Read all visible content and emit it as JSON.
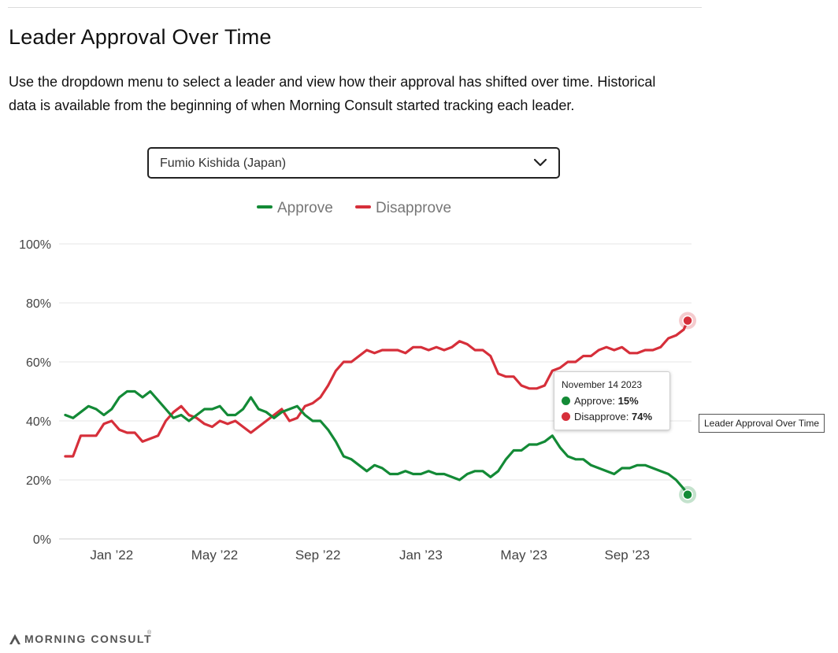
{
  "header": {
    "title": "Leader Approval Over Time",
    "description": "Use the dropdown menu to select a leader and view how their approval has shifted over time. Historical data is available from the beginning of when Morning Consult started tracking each leader."
  },
  "leader_select": {
    "value": "Fumio Kishida (Japan)",
    "icon": "chevron-down-icon"
  },
  "tooltip": {
    "date": "November 14 2023",
    "approve_label": "Approve:",
    "approve_value": "15%",
    "disapprove_label": "Disapprove:",
    "disapprove_value": "74%"
  },
  "side_label": "Leader Approval Over Time",
  "brand": {
    "name": "MORNING CONSULT",
    "tm": "®"
  },
  "colors": {
    "approve": "#138a36",
    "disapprove": "#d62f3a",
    "grid": "#e6e6e6",
    "axis_text": "#444"
  },
  "chart_data": {
    "type": "line",
    "title": "Leader Approval Over Time",
    "ylim": [
      0,
      100
    ],
    "xlim": [
      2021.83,
      2023.875
    ],
    "y_ticks": [
      0,
      20,
      40,
      60,
      80,
      100
    ],
    "y_tick_labels": [
      "0%",
      "20%",
      "40%",
      "60%",
      "80%",
      "100%"
    ],
    "x_ticks": [
      2022.0,
      2022.333,
      2022.667,
      2023.0,
      2023.333,
      2023.667
    ],
    "x_tick_labels": [
      "Jan ’22",
      "May ’22",
      "Sep ’22",
      "Jan ’23",
      "May ’23",
      "Sep ’23"
    ],
    "legend_position": "top-center",
    "x": [
      2021.85,
      2021.875,
      2021.9,
      2021.925,
      2021.95,
      2021.975,
      2022.0,
      2022.025,
      2022.05,
      2022.075,
      2022.1,
      2022.125,
      2022.15,
      2022.175,
      2022.2,
      2022.225,
      2022.25,
      2022.275,
      2022.3,
      2022.325,
      2022.35,
      2022.375,
      2022.4,
      2022.425,
      2022.45,
      2022.475,
      2022.5,
      2022.525,
      2022.55,
      2022.575,
      2022.6,
      2022.625,
      2022.65,
      2022.675,
      2022.7,
      2022.725,
      2022.75,
      2022.775,
      2022.8,
      2022.825,
      2022.85,
      2022.875,
      2022.9,
      2022.925,
      2022.95,
      2022.975,
      2023.0,
      2023.025,
      2023.05,
      2023.075,
      2023.1,
      2023.125,
      2023.15,
      2023.175,
      2023.2,
      2023.225,
      2023.25,
      2023.275,
      2023.3,
      2023.325,
      2023.35,
      2023.375,
      2023.4,
      2023.425,
      2023.45,
      2023.475,
      2023.5,
      2023.525,
      2023.55,
      2023.575,
      2023.6,
      2023.625,
      2023.65,
      2023.675,
      2023.7,
      2023.725,
      2023.75,
      2023.775,
      2023.8,
      2023.825,
      2023.85,
      2023.8625
    ],
    "series": [
      {
        "name": "Approve",
        "values": [
          42,
          41,
          43,
          45,
          44,
          42,
          44,
          48,
          50,
          50,
          48,
          50,
          47,
          44,
          41,
          42,
          40,
          42,
          44,
          44,
          45,
          42,
          42,
          44,
          48,
          44,
          43,
          41,
          43,
          44,
          45,
          42,
          40,
          40,
          37,
          33,
          28,
          27,
          25,
          23,
          25,
          24,
          22,
          22,
          23,
          22,
          22,
          23,
          22,
          22,
          21,
          20,
          22,
          23,
          23,
          21,
          23,
          27,
          30,
          30,
          32,
          32,
          33,
          35,
          31,
          28,
          27,
          27,
          25,
          24,
          23,
          22,
          24,
          24,
          25,
          25,
          24,
          23,
          22,
          20,
          17,
          15
        ]
      },
      {
        "name": "Disapprove",
        "values": [
          28,
          28,
          35,
          35,
          35,
          39,
          40,
          37,
          36,
          36,
          33,
          34,
          35,
          40,
          43,
          45,
          42,
          41,
          39,
          38,
          40,
          39,
          40,
          38,
          36,
          38,
          40,
          42,
          44,
          40,
          41,
          45,
          46,
          48,
          52,
          57,
          60,
          60,
          62,
          64,
          63,
          64,
          64,
          64,
          63,
          65,
          65,
          64,
          65,
          64,
          65,
          67,
          66,
          64,
          64,
          62,
          56,
          55,
          55,
          52,
          51,
          51,
          52,
          57,
          58,
          60,
          60,
          62,
          62,
          64,
          65,
          64,
          65,
          63,
          63,
          64,
          64,
          65,
          68,
          69,
          71,
          74
        ]
      }
    ]
  }
}
